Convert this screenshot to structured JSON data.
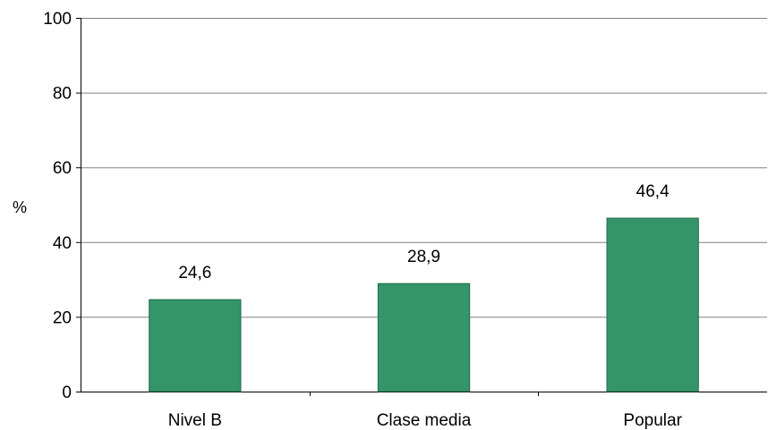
{
  "chart_data": {
    "type": "bar",
    "categories": [
      "Nivel B",
      "Clase media",
      "Popular"
    ],
    "values": [
      24.6,
      28.9,
      46.4
    ],
    "data_labels": [
      "24,6",
      "28,9",
      "46,4"
    ],
    "title": "",
    "xlabel": "",
    "ylabel": "%",
    "ylim": [
      0,
      100
    ],
    "yticks": [
      0,
      20,
      40,
      60,
      80,
      100
    ],
    "grid": true,
    "legend": "none",
    "colors": {
      "bar": "#35956a",
      "bar_edge": "#1e6b47",
      "grid": "#808080",
      "axis": "#000000"
    }
  }
}
